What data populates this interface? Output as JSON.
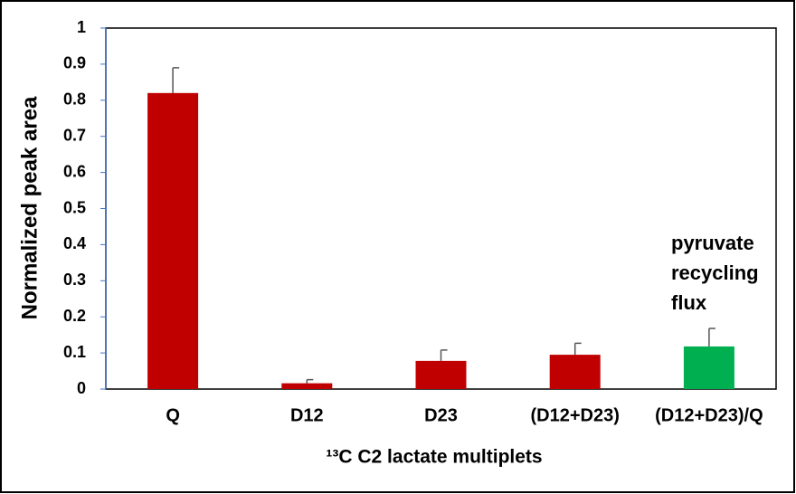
{
  "chart_data": {
    "type": "bar",
    "y_label": "Normalized peak area",
    "x_label": "¹³C C2 lactate multiplets",
    "annotation": [
      "pyruvate",
      "recycling",
      "flux"
    ],
    "categories": [
      "Q",
      "D12",
      "D23",
      "(D12+D23)",
      "(D12+D23)/Q"
    ],
    "values": [
      0.82,
      0.016,
      0.078,
      0.095,
      0.118
    ],
    "errors": [
      0.07,
      0.01,
      0.03,
      0.032,
      0.05
    ],
    "colors": [
      "#c00000",
      "#c00000",
      "#c00000",
      "#c00000",
      "#00b050"
    ],
    "ylim": [
      0,
      1
    ],
    "yticks": [
      0,
      0.1,
      0.2,
      0.3,
      0.4,
      0.5,
      0.6,
      0.7,
      0.8,
      0.9,
      1
    ]
  }
}
